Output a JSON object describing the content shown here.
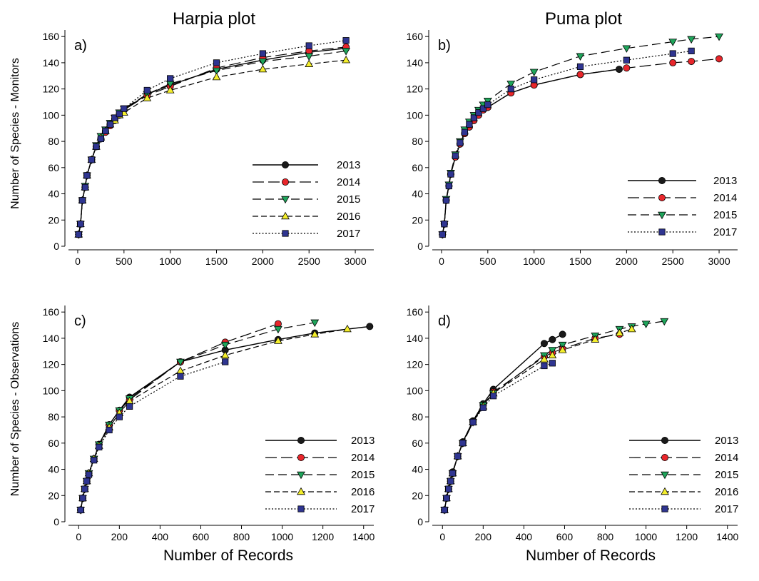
{
  "figure": {
    "col_titles": [
      "Harpia plot",
      "Puma plot"
    ],
    "ylabels": [
      "Number of Species - Monitors",
      "Number of Species - Observations"
    ],
    "xlabel": "Number of Records"
  },
  "chart_data": [
    {
      "type": "line",
      "panel_label": "a)",
      "xlim": [
        -100,
        3200
      ],
      "ylim": [
        0,
        165
      ],
      "xticks": [
        0,
        500,
        1000,
        1500,
        2000,
        2500,
        3000
      ],
      "yticks": [
        0,
        20,
        40,
        60,
        80,
        100,
        120,
        140,
        160
      ],
      "grid": false,
      "legend_position": "bottom-right",
      "series": [
        {
          "name": "2013",
          "x": [
            10,
            30,
            50,
            80,
            100,
            150,
            200,
            250,
            300,
            350,
            400,
            450,
            500,
            750,
            1000,
            1500,
            2000,
            2500,
            2900
          ],
          "y": [
            9,
            17,
            35,
            45,
            54,
            66,
            76,
            82,
            88,
            93,
            97,
            101,
            104,
            116,
            123,
            135,
            142,
            148,
            151
          ]
        },
        {
          "name": "2014",
          "x": [
            10,
            30,
            50,
            80,
            100,
            150,
            200,
            250,
            300,
            350,
            400,
            450,
            500,
            750,
            1000,
            1500,
            2000,
            2500,
            2900
          ],
          "y": [
            9,
            17,
            35,
            45,
            54,
            66,
            76,
            82,
            87,
            92,
            96,
            100,
            104,
            115,
            122,
            136,
            144,
            149,
            152
          ]
        },
        {
          "name": "2015",
          "x": [
            10,
            30,
            50,
            80,
            100,
            150,
            200,
            250,
            300,
            350,
            400,
            450,
            500,
            750,
            1000,
            1500,
            2000,
            2500,
            2900
          ],
          "y": [
            9,
            17,
            35,
            46,
            54,
            66,
            77,
            84,
            89,
            94,
            98,
            102,
            105,
            116,
            124,
            134,
            141,
            145,
            149
          ]
        },
        {
          "name": "2016",
          "x": [
            10,
            30,
            50,
            80,
            100,
            150,
            200,
            250,
            300,
            350,
            400,
            450,
            500,
            750,
            1000,
            1500,
            2000,
            2500,
            2900
          ],
          "y": [
            9,
            17,
            35,
            45,
            54,
            66,
            76,
            83,
            88,
            93,
            96,
            100,
            102,
            113,
            119,
            129,
            135,
            139,
            142
          ]
        },
        {
          "name": "2017",
          "x": [
            10,
            30,
            50,
            80,
            100,
            150,
            200,
            250,
            300,
            350,
            400,
            450,
            500,
            750,
            1000,
            1500,
            2000,
            2500,
            2900
          ],
          "y": [
            9,
            17,
            35,
            45,
            54,
            66,
            76,
            82,
            88,
            93,
            98,
            101,
            105,
            119,
            128,
            140,
            147,
            153,
            157
          ]
        }
      ]
    },
    {
      "type": "line",
      "panel_label": "b)",
      "xlim": [
        -100,
        3200
      ],
      "ylim": [
        0,
        165
      ],
      "xticks": [
        0,
        500,
        1000,
        1500,
        2000,
        2500,
        3000
      ],
      "yticks": [
        0,
        20,
        40,
        60,
        80,
        100,
        120,
        140,
        160
      ],
      "grid": false,
      "legend_position": "bottom-right",
      "series": [
        {
          "name": "2013",
          "x": [
            10,
            30,
            50,
            80,
            100,
            150,
            200,
            250,
            300,
            350,
            400,
            450,
            500,
            750,
            1000,
            1500,
            1920
          ],
          "y": [
            9,
            17,
            35,
            46,
            55,
            68,
            78,
            86,
            91,
            96,
            100,
            104,
            106,
            117,
            123,
            131,
            135
          ]
        },
        {
          "name": "2014",
          "x": [
            10,
            30,
            50,
            80,
            100,
            150,
            200,
            250,
            300,
            350,
            400,
            450,
            500,
            750,
            1000,
            1500,
            2000,
            2500,
            2700,
            3000
          ],
          "y": [
            9,
            17,
            35,
            46,
            55,
            68,
            78,
            86,
            91,
            96,
            100,
            104,
            106,
            117,
            123,
            131,
            136,
            140,
            141,
            143
          ]
        },
        {
          "name": "2015",
          "x": [
            10,
            30,
            50,
            80,
            100,
            150,
            200,
            250,
            300,
            350,
            400,
            450,
            500,
            750,
            1000,
            1500,
            2000,
            2500,
            2700,
            3000
          ],
          "y": [
            9,
            17,
            36,
            47,
            56,
            70,
            80,
            89,
            95,
            100,
            104,
            108,
            111,
            124,
            133,
            145,
            151,
            156,
            158,
            160
          ]
        },
        {
          "name": "2017",
          "x": [
            10,
            30,
            50,
            80,
            100,
            150,
            200,
            250,
            300,
            350,
            400,
            450,
            500,
            750,
            1000,
            1500,
            2000,
            2500,
            2700
          ],
          "y": [
            9,
            17,
            35,
            46,
            55,
            69,
            79,
            87,
            93,
            98,
            102,
            105,
            108,
            120,
            127,
            137,
            142,
            147,
            149
          ]
        }
      ]
    },
    {
      "type": "line",
      "panel_label": "c)",
      "xlim": [
        -50,
        1450
      ],
      "ylim": [
        0,
        165
      ],
      "xticks": [
        0,
        200,
        400,
        600,
        800,
        1000,
        1200,
        1400
      ],
      "yticks": [
        0,
        20,
        40,
        60,
        80,
        100,
        120,
        140,
        160
      ],
      "grid": false,
      "legend_position": "bottom-right",
      "series": [
        {
          "name": "2013",
          "x": [
            10,
            20,
            30,
            40,
            50,
            75,
            100,
            150,
            200,
            250,
            500,
            720,
            980,
            1160,
            1430
          ],
          "y": [
            9,
            18,
            25,
            31,
            37,
            48,
            59,
            74,
            85,
            95,
            122,
            131,
            139,
            144,
            149
          ]
        },
        {
          "name": "2014",
          "x": [
            10,
            20,
            30,
            40,
            50,
            75,
            100,
            150,
            200,
            250,
            500,
            720,
            980
          ],
          "y": [
            9,
            18,
            25,
            31,
            37,
            48,
            59,
            74,
            85,
            93,
            122,
            137,
            151
          ]
        },
        {
          "name": "2015",
          "x": [
            10,
            20,
            30,
            40,
            50,
            75,
            100,
            150,
            200,
            250,
            500,
            720,
            980,
            1160
          ],
          "y": [
            9,
            18,
            25,
            31,
            37,
            48,
            59,
            74,
            85,
            94,
            122,
            135,
            147,
            152
          ]
        },
        {
          "name": "2016",
          "x": [
            10,
            20,
            30,
            40,
            50,
            75,
            100,
            150,
            200,
            250,
            500,
            720,
            980,
            1160,
            1320
          ],
          "y": [
            9,
            18,
            25,
            31,
            37,
            48,
            58,
            72,
            83,
            92,
            115,
            127,
            138,
            143,
            147
          ]
        },
        {
          "name": "2017",
          "x": [
            10,
            20,
            30,
            40,
            50,
            75,
            100,
            150,
            200,
            250,
            500,
            720
          ],
          "y": [
            9,
            18,
            25,
            31,
            36,
            47,
            57,
            70,
            80,
            88,
            111,
            122
          ]
        }
      ]
    },
    {
      "type": "line",
      "panel_label": "d)",
      "xlim": [
        -50,
        1450
      ],
      "ylim": [
        0,
        165
      ],
      "xticks": [
        0,
        200,
        400,
        600,
        800,
        1000,
        1200,
        1400
      ],
      "yticks": [
        0,
        20,
        40,
        60,
        80,
        100,
        120,
        140,
        160
      ],
      "grid": false,
      "legend_position": "bottom-right",
      "series": [
        {
          "name": "2013",
          "x": [
            10,
            20,
            30,
            40,
            50,
            75,
            100,
            150,
            200,
            250,
            500,
            540,
            590
          ],
          "y": [
            9,
            18,
            25,
            31,
            38,
            50,
            61,
            77,
            90,
            101,
            136,
            139,
            143
          ]
        },
        {
          "name": "2014",
          "x": [
            10,
            20,
            30,
            40,
            50,
            75,
            100,
            150,
            200,
            250,
            500,
            540,
            590,
            750,
            870
          ],
          "y": [
            9,
            18,
            25,
            31,
            37,
            50,
            60,
            76,
            89,
            99,
            126,
            129,
            132,
            140,
            143
          ]
        },
        {
          "name": "2015",
          "x": [
            10,
            20,
            30,
            40,
            50,
            75,
            100,
            150,
            200,
            250,
            500,
            540,
            590,
            750,
            870,
            930,
            1000,
            1090
          ],
          "y": [
            9,
            18,
            25,
            31,
            37,
            50,
            60,
            76,
            89,
            98,
            127,
            131,
            135,
            142,
            147,
            149,
            151,
            153
          ]
        },
        {
          "name": "2016",
          "x": [
            10,
            20,
            30,
            40,
            50,
            75,
            100,
            150,
            200,
            250,
            500,
            540,
            590,
            750,
            870,
            930
          ],
          "y": [
            9,
            18,
            25,
            31,
            37,
            50,
            60,
            76,
            88,
            98,
            124,
            127,
            131,
            139,
            144,
            147
          ]
        },
        {
          "name": "2017",
          "x": [
            10,
            20,
            30,
            40,
            50,
            75,
            100,
            150,
            200,
            250,
            500,
            540
          ],
          "y": [
            9,
            18,
            25,
            31,
            37,
            50,
            60,
            76,
            87,
            96,
            119,
            121
          ]
        }
      ]
    }
  ]
}
